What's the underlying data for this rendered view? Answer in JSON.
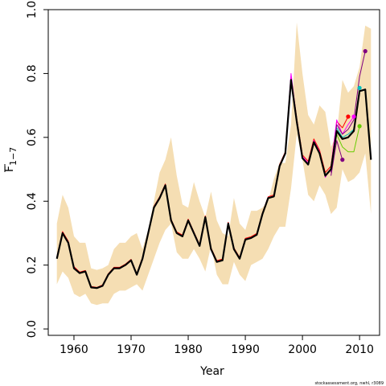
{
  "chart_data": {
    "type": "line",
    "xlabel": "Year",
    "ylabel": "F",
    "ylabel_subscript": "1−7",
    "xlim": [
      1955.5,
      2013.5
    ],
    "ylim": [
      -0.02,
      1.0
    ],
    "x_ticks": [
      1960,
      1970,
      1980,
      1990,
      2000,
      2010
    ],
    "x_tick_labels": [
      "1960",
      "1970",
      "1980",
      "1990",
      "2000",
      "2010"
    ],
    "y_ticks": [
      0.0,
      0.2,
      0.4,
      0.6,
      0.8,
      1.0
    ],
    "y_tick_labels": [
      "0.0",
      "0.2",
      "0.4",
      "0.6",
      "0.8",
      "1.0"
    ],
    "grid": false,
    "footer": "stockassessment.org, nwhl, r3089",
    "colors": {
      "band": "#f5deb3",
      "main": "#000000",
      "retro_1": "#ff0000",
      "retro_2": "#ff00ff",
      "retro_3": "#00bfbf",
      "retro_4": "#66cc00",
      "retro_5": "#800080"
    },
    "confidence_band": {
      "x": [
        1957,
        1958,
        1959,
        1960,
        1961,
        1962,
        1963,
        1964,
        1965,
        1966,
        1967,
        1968,
        1969,
        1970,
        1971,
        1972,
        1973,
        1974,
        1975,
        1976,
        1977,
        1978,
        1979,
        1980,
        1981,
        1982,
        1983,
        1984,
        1985,
        1986,
        1987,
        1988,
        1989,
        1990,
        1991,
        1992,
        1993,
        1994,
        1995,
        1996,
        1997,
        1998,
        1999,
        2000,
        2001,
        2002,
        2003,
        2004,
        2005,
        2006,
        2007,
        2008,
        2009,
        2010,
        2011,
        2012
      ],
      "upper": [
        0.33,
        0.42,
        0.38,
        0.29,
        0.27,
        0.27,
        0.19,
        0.185,
        0.19,
        0.2,
        0.25,
        0.27,
        0.27,
        0.29,
        0.3,
        0.25,
        0.31,
        0.4,
        0.49,
        0.53,
        0.6,
        0.48,
        0.39,
        0.38,
        0.46,
        0.4,
        0.35,
        0.43,
        0.34,
        0.3,
        0.29,
        0.41,
        0.33,
        0.31,
        0.37,
        0.37,
        0.38,
        0.4,
        0.47,
        0.52,
        0.52,
        0.64,
        0.96,
        0.8,
        0.67,
        0.64,
        0.7,
        0.68,
        0.57,
        0.61,
        0.78,
        0.74,
        0.76,
        0.82,
        0.95,
        0.94
      ],
      "lower": [
        0.14,
        0.18,
        0.16,
        0.11,
        0.1,
        0.11,
        0.08,
        0.075,
        0.08,
        0.08,
        0.11,
        0.12,
        0.12,
        0.13,
        0.14,
        0.12,
        0.17,
        0.22,
        0.27,
        0.31,
        0.33,
        0.24,
        0.22,
        0.22,
        0.25,
        0.22,
        0.18,
        0.26,
        0.17,
        0.14,
        0.14,
        0.21,
        0.17,
        0.15,
        0.2,
        0.21,
        0.22,
        0.25,
        0.29,
        0.32,
        0.32,
        0.44,
        0.61,
        0.53,
        0.42,
        0.4,
        0.45,
        0.42,
        0.36,
        0.38,
        0.5,
        0.46,
        0.47,
        0.49,
        0.55,
        0.36
      ]
    },
    "series": [
      {
        "color": "main",
        "width": 2.2,
        "dot": false,
        "x": [
          1957,
          1958,
          1959,
          1960,
          1961,
          1962,
          1963,
          1964,
          1965,
          1966,
          1967,
          1968,
          1969,
          1970,
          1971,
          1972,
          1973,
          1974,
          1975,
          1976,
          1977,
          1978,
          1979,
          1980,
          1981,
          1982,
          1983,
          1984,
          1985,
          1986,
          1987,
          1988,
          1989,
          1990,
          1991,
          1992,
          1993,
          1994,
          1995,
          1996,
          1997,
          1998,
          1999,
          2000,
          2001,
          2002,
          2003,
          2004,
          2005,
          2006,
          2007,
          2008,
          2009,
          2010,
          2011,
          2012
        ],
        "y": [
          0.22,
          0.3,
          0.27,
          0.19,
          0.175,
          0.18,
          0.13,
          0.128,
          0.135,
          0.17,
          0.19,
          0.19,
          0.2,
          0.215,
          0.17,
          0.22,
          0.3,
          0.38,
          0.41,
          0.45,
          0.34,
          0.3,
          0.29,
          0.34,
          0.3,
          0.26,
          0.35,
          0.25,
          0.21,
          0.215,
          0.33,
          0.25,
          0.22,
          0.28,
          0.285,
          0.295,
          0.36,
          0.41,
          0.415,
          0.51,
          0.55,
          0.78,
          0.65,
          0.535,
          0.515,
          0.585,
          0.55,
          0.48,
          0.5,
          0.62,
          0.595,
          0.6,
          0.62,
          0.745,
          0.75,
          0.53
        ]
      },
      {
        "color": "retro_1",
        "width": 1,
        "dot": true,
        "x": [
          1957,
          1958,
          1959,
          1960,
          1961,
          1962,
          1963,
          1964,
          1965,
          1966,
          1967,
          1968,
          1969,
          1970,
          1971,
          1972,
          1973,
          1974,
          1975,
          1976,
          1977,
          1978,
          1979,
          1980,
          1981,
          1982,
          1983,
          1984,
          1985,
          1986,
          1987,
          1988,
          1989,
          1990,
          1991,
          1992,
          1993,
          1994,
          1995,
          1996,
          1997,
          1998,
          1999,
          2000,
          2001,
          2002,
          2003,
          2004,
          2005,
          2006,
          2007,
          2008
        ],
        "y": [
          0.225,
          0.305,
          0.275,
          0.195,
          0.178,
          0.183,
          0.133,
          0.13,
          0.138,
          0.173,
          0.193,
          0.193,
          0.203,
          0.218,
          0.173,
          0.224,
          0.304,
          0.384,
          0.414,
          0.454,
          0.344,
          0.304,
          0.294,
          0.344,
          0.304,
          0.264,
          0.354,
          0.254,
          0.214,
          0.219,
          0.334,
          0.254,
          0.224,
          0.284,
          0.289,
          0.299,
          0.364,
          0.414,
          0.42,
          0.515,
          0.555,
          0.79,
          0.66,
          0.545,
          0.525,
          0.595,
          0.56,
          0.49,
          0.51,
          0.65,
          0.63,
          0.665
        ]
      },
      {
        "color": "retro_2",
        "width": 1,
        "dot": true,
        "x": [
          1957,
          1958,
          1959,
          1960,
          1961,
          1962,
          1963,
          1964,
          1965,
          1966,
          1967,
          1968,
          1969,
          1970,
          1971,
          1972,
          1973,
          1974,
          1975,
          1976,
          1977,
          1978,
          1979,
          1980,
          1981,
          1982,
          1983,
          1984,
          1985,
          1986,
          1987,
          1988,
          1989,
          1990,
          1991,
          1992,
          1993,
          1994,
          1995,
          1996,
          1997,
          1998,
          1999,
          2000,
          2001,
          2002,
          2003,
          2004,
          2005,
          2006,
          2007,
          2008,
          2009
        ],
        "y": [
          0.222,
          0.302,
          0.272,
          0.192,
          0.176,
          0.181,
          0.131,
          0.129,
          0.136,
          0.171,
          0.191,
          0.191,
          0.201,
          0.216,
          0.171,
          0.221,
          0.301,
          0.381,
          0.411,
          0.451,
          0.341,
          0.301,
          0.291,
          0.341,
          0.301,
          0.261,
          0.351,
          0.251,
          0.211,
          0.216,
          0.331,
          0.251,
          0.221,
          0.281,
          0.286,
          0.296,
          0.361,
          0.411,
          0.416,
          0.511,
          0.551,
          0.8,
          0.655,
          0.54,
          0.52,
          0.59,
          0.555,
          0.475,
          0.505,
          0.655,
          0.61,
          0.64,
          0.665
        ]
      },
      {
        "color": "retro_3",
        "width": 1,
        "dot": true,
        "x": [
          2005,
          2006,
          2007,
          2008,
          2009,
          2010
        ],
        "y": [
          0.5,
          0.63,
          0.6,
          0.61,
          0.625,
          0.755
        ]
      },
      {
        "color": "retro_4",
        "width": 1,
        "dot": true,
        "x": [
          2005,
          2006,
          2007,
          2008,
          2009,
          2010
        ],
        "y": [
          0.5,
          0.61,
          0.57,
          0.555,
          0.555,
          0.635
        ]
      },
      {
        "color": "retro_5",
        "width": 1,
        "dot": true,
        "x": [
          2005,
          2006,
          2007,
          2008,
          2009,
          2010,
          2011
        ],
        "y": [
          0.49,
          0.64,
          0.61,
          0.625,
          0.655,
          0.79,
          0.87
        ]
      },
      {
        "color": "retro_5",
        "width": 1,
        "dot": true,
        "x": [
          2005,
          2006,
          2007
        ],
        "y": [
          0.48,
          0.59,
          0.53
        ]
      }
    ]
  }
}
